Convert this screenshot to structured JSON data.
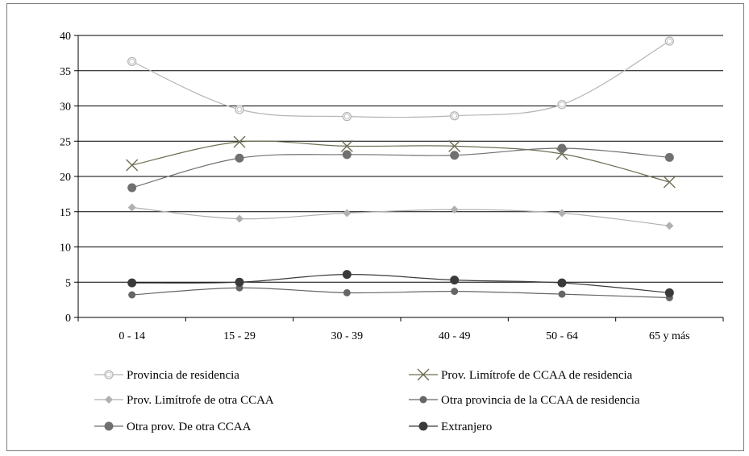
{
  "chart_data": {
    "type": "line",
    "categories": [
      "0 - 14",
      "15 - 29",
      "30 - 39",
      "40 - 49",
      "50 - 64",
      "65 y más"
    ],
    "ylim": [
      0,
      40
    ],
    "yticks": [
      0,
      5,
      10,
      15,
      20,
      25,
      30,
      35,
      40
    ],
    "grid": true,
    "legend_position": "bottom",
    "series": [
      {
        "name": "Provincia de residencia",
        "values": [
          36.3,
          29.5,
          28.5,
          28.6,
          30.2,
          39.2
        ],
        "color": "#b4b4b4",
        "marker": "open-circle"
      },
      {
        "name": "Prov. Limítrofe de CCAA de residencia",
        "values": [
          21.6,
          24.9,
          24.3,
          24.3,
          23.2,
          19.2
        ],
        "color": "#6e6e54",
        "marker": "x"
      },
      {
        "name": "Prov. Limítrofe de otra CCAA",
        "values": [
          15.6,
          14.0,
          14.8,
          15.3,
          14.8,
          13.0
        ],
        "color": "#b0b0b0",
        "marker": "diamond"
      },
      {
        "name": "Otra provincia de la CCAA de residencia",
        "values": [
          3.2,
          4.2,
          3.5,
          3.7,
          3.3,
          2.8
        ],
        "color": "#666666",
        "marker": "circle"
      },
      {
        "name": "Otra prov. De otra CCAA",
        "values": [
          18.4,
          22.6,
          23.1,
          23.0,
          24.0,
          22.7
        ],
        "color": "#707070",
        "marker": "circle-large"
      },
      {
        "name": "Extranjero",
        "values": [
          4.9,
          5.0,
          6.1,
          5.3,
          4.9,
          3.5
        ],
        "color": "#3a3a3a",
        "marker": "circle-large"
      }
    ]
  }
}
